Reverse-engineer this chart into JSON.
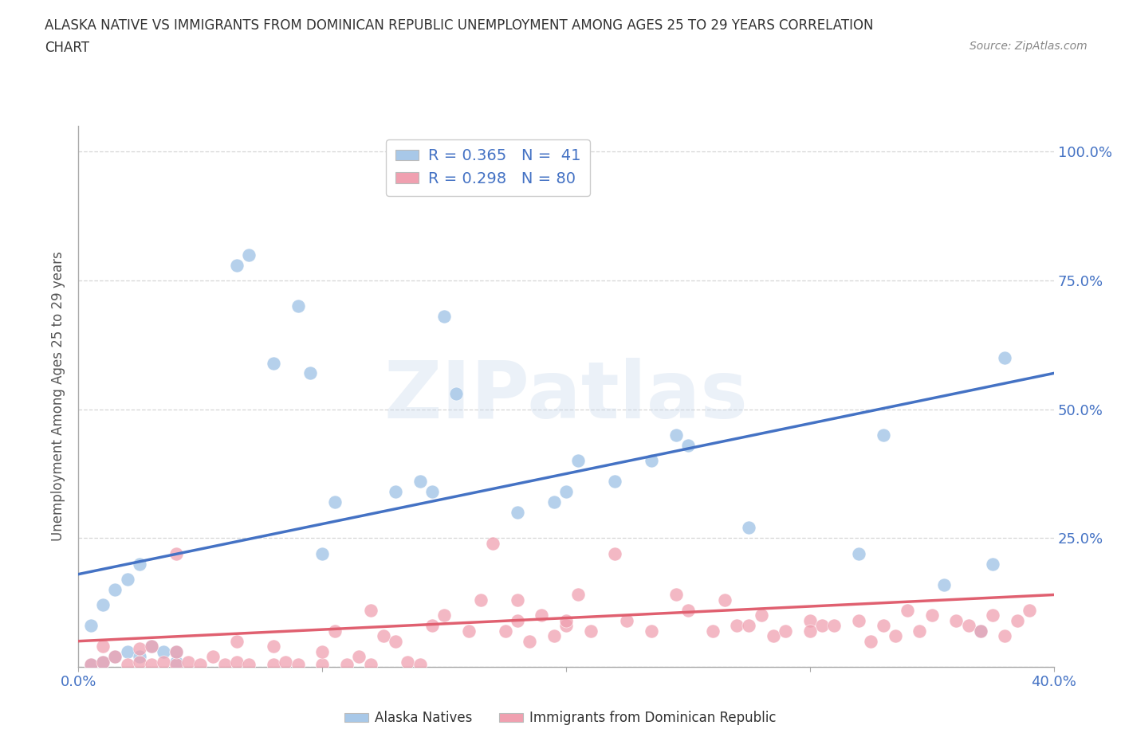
{
  "title_line1": "ALASKA NATIVE VS IMMIGRANTS FROM DOMINICAN REPUBLIC UNEMPLOYMENT AMONG AGES 25 TO 29 YEARS CORRELATION",
  "title_line2": "CHART",
  "source_text": "Source: ZipAtlas.com",
  "ylabel": "Unemployment Among Ages 25 to 29 years",
  "xlim": [
    0.0,
    0.4
  ],
  "ylim": [
    0.0,
    1.05
  ],
  "xticks": [
    0.0,
    0.1,
    0.2,
    0.3,
    0.4
  ],
  "xtick_labels": [
    "0.0%",
    "",
    "",
    "",
    "40.0%"
  ],
  "ytick_labels": [
    "",
    "25.0%",
    "50.0%",
    "75.0%",
    "100.0%"
  ],
  "yticks": [
    0.0,
    0.25,
    0.5,
    0.75,
    1.0
  ],
  "legend_top_labels": [
    "R = 0.365   N =  41",
    "R = 0.298   N = 80"
  ],
  "legend_bottom_labels": [
    "Alaska Natives",
    "Immigrants from Dominican Republic"
  ],
  "watermark": "ZIPatlas",
  "alaska_color": "#a8c8e8",
  "dominican_color": "#f0a0b0",
  "alaska_line_color": "#4472c4",
  "dominican_line_color": "#e06070",
  "alaska_line_y0": 0.18,
  "alaska_line_y1": 0.57,
  "dominican_line_y0": 0.05,
  "dominican_line_y1": 0.14,
  "alaska_scatter_x": [
    0.005,
    0.01,
    0.015,
    0.02,
    0.025,
    0.03,
    0.035,
    0.04,
    0.005,
    0.01,
    0.015,
    0.02,
    0.025,
    0.065,
    0.07,
    0.08,
    0.09,
    0.095,
    0.1,
    0.105,
    0.13,
    0.14,
    0.145,
    0.155,
    0.18,
    0.195,
    0.2,
    0.205,
    0.22,
    0.235,
    0.245,
    0.25,
    0.275,
    0.32,
    0.33,
    0.355,
    0.375,
    0.38,
    0.04,
    0.15,
    0.37
  ],
  "alaska_scatter_y": [
    0.005,
    0.01,
    0.02,
    0.03,
    0.02,
    0.04,
    0.03,
    0.01,
    0.08,
    0.12,
    0.15,
    0.17,
    0.2,
    0.78,
    0.8,
    0.59,
    0.7,
    0.57,
    0.22,
    0.32,
    0.34,
    0.36,
    0.34,
    0.53,
    0.3,
    0.32,
    0.34,
    0.4,
    0.36,
    0.4,
    0.45,
    0.43,
    0.27,
    0.22,
    0.45,
    0.16,
    0.2,
    0.6,
    0.03,
    0.68,
    0.07
  ],
  "dominican_scatter_x": [
    0.005,
    0.01,
    0.01,
    0.015,
    0.02,
    0.025,
    0.025,
    0.03,
    0.03,
    0.035,
    0.04,
    0.04,
    0.045,
    0.05,
    0.055,
    0.06,
    0.065,
    0.065,
    0.07,
    0.08,
    0.08,
    0.085,
    0.09,
    0.1,
    0.1,
    0.105,
    0.11,
    0.115,
    0.12,
    0.125,
    0.13,
    0.135,
    0.14,
    0.145,
    0.15,
    0.16,
    0.165,
    0.17,
    0.175,
    0.18,
    0.18,
    0.185,
    0.19,
    0.195,
    0.2,
    0.205,
    0.21,
    0.22,
    0.225,
    0.235,
    0.245,
    0.25,
    0.26,
    0.265,
    0.27,
    0.275,
    0.28,
    0.285,
    0.29,
    0.3,
    0.305,
    0.31,
    0.32,
    0.325,
    0.33,
    0.335,
    0.34,
    0.345,
    0.35,
    0.36,
    0.365,
    0.37,
    0.375,
    0.38,
    0.385,
    0.39,
    0.04,
    0.12,
    0.2,
    0.3
  ],
  "dominican_scatter_y": [
    0.005,
    0.01,
    0.04,
    0.02,
    0.005,
    0.01,
    0.035,
    0.005,
    0.04,
    0.01,
    0.005,
    0.03,
    0.01,
    0.005,
    0.02,
    0.005,
    0.01,
    0.05,
    0.005,
    0.005,
    0.04,
    0.01,
    0.005,
    0.005,
    0.03,
    0.07,
    0.005,
    0.02,
    0.005,
    0.06,
    0.05,
    0.01,
    0.005,
    0.08,
    0.1,
    0.07,
    0.13,
    0.24,
    0.07,
    0.09,
    0.13,
    0.05,
    0.1,
    0.06,
    0.08,
    0.14,
    0.07,
    0.22,
    0.09,
    0.07,
    0.14,
    0.11,
    0.07,
    0.13,
    0.08,
    0.08,
    0.1,
    0.06,
    0.07,
    0.09,
    0.08,
    0.08,
    0.09,
    0.05,
    0.08,
    0.06,
    0.11,
    0.07,
    0.1,
    0.09,
    0.08,
    0.07,
    0.1,
    0.06,
    0.09,
    0.11,
    0.22,
    0.11,
    0.09,
    0.07
  ]
}
